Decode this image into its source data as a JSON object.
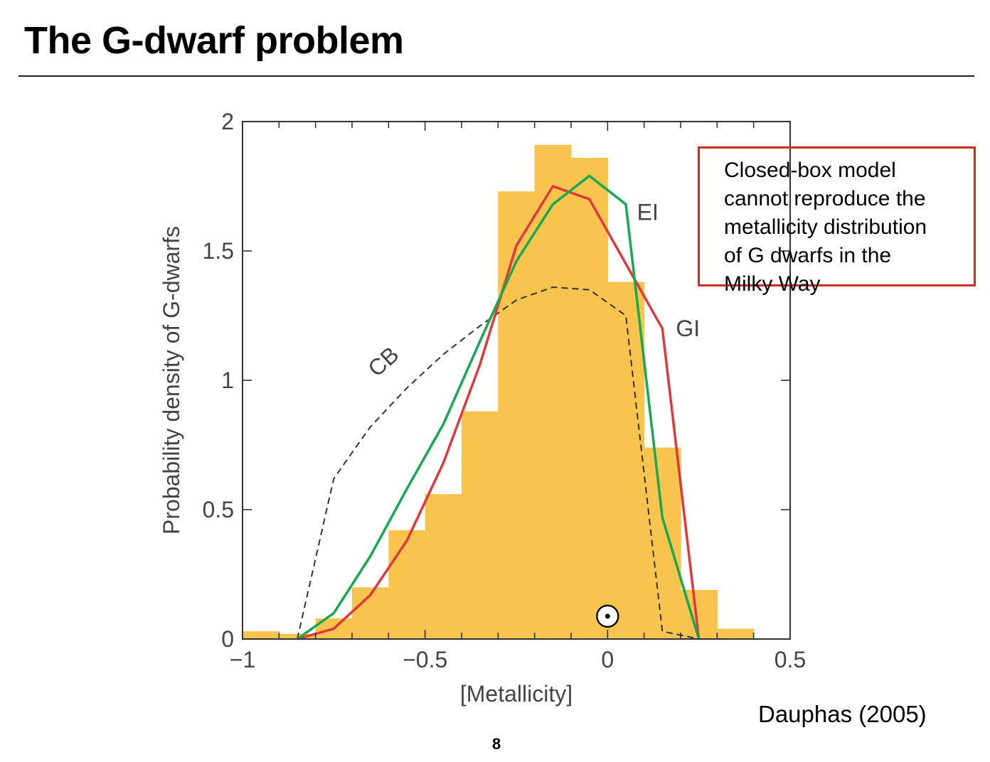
{
  "slide": {
    "title": "The G-dwarf problem",
    "callout_lines": [
      "Closed-box model",
      "cannot reproduce the",
      "metallicity distribution",
      "of G dwarfs in the",
      "Milky Way"
    ],
    "citation": "Dauphas (2005)",
    "page_number": "8"
  },
  "colors": {
    "histogram": "#f8c44e",
    "CB": "#333333",
    "GI": "#e0393b",
    "EI": "#18a851",
    "callout_border": "#cc2e22"
  },
  "chart_data": {
    "type": "bar",
    "xlabel": "[Metallicity]",
    "ylabel": "Probability density of G-dwarfs",
    "xlim": [
      -1,
      0.5
    ],
    "ylim": [
      0,
      2
    ],
    "xticks": [
      {
        "v": -1,
        "label": "−1"
      },
      {
        "v": -0.5,
        "label": "−0.5"
      },
      {
        "v": 0,
        "label": "0"
      },
      {
        "v": 0.5,
        "label": "0.5"
      }
    ],
    "yticks": [
      {
        "v": 0,
        "label": "0"
      },
      {
        "v": 0.5,
        "label": "0.5"
      },
      {
        "v": 1,
        "label": "1"
      },
      {
        "v": 1.5,
        "label": "1.5"
      },
      {
        "v": 2,
        "label": "2"
      }
    ],
    "histogram": {
      "bin_edges": [
        -1.0,
        -0.9,
        -0.8,
        -0.7,
        -0.6,
        -0.5,
        -0.4,
        -0.3,
        -0.2,
        -0.1,
        0.0,
        0.1,
        0.2,
        0.3,
        0.4
      ],
      "values": [
        0.03,
        0.02,
        0.08,
        0.2,
        0.42,
        0.56,
        0.88,
        1.73,
        1.91,
        1.86,
        1.38,
        0.74,
        0.19,
        0.04
      ]
    },
    "series": [
      {
        "name": "CB",
        "style": "dashed",
        "x": [
          -0.85,
          -0.75,
          -0.65,
          -0.55,
          -0.45,
          -0.35,
          -0.25,
          -0.15,
          -0.05,
          0.05,
          0.15,
          0.25
        ],
        "y": [
          0.0,
          0.62,
          0.82,
          0.97,
          1.1,
          1.21,
          1.31,
          1.36,
          1.35,
          1.25,
          0.03,
          0.0
        ]
      },
      {
        "name": "GI",
        "style": "solid",
        "x": [
          -0.85,
          -0.75,
          -0.65,
          -0.55,
          -0.45,
          -0.35,
          -0.25,
          -0.15,
          -0.05,
          0.05,
          0.15,
          0.25
        ],
        "y": [
          0.0,
          0.04,
          0.17,
          0.38,
          0.68,
          1.06,
          1.52,
          1.75,
          1.7,
          1.45,
          1.2,
          0.0
        ]
      },
      {
        "name": "EI",
        "style": "solid",
        "x": [
          -0.85,
          -0.75,
          -0.65,
          -0.55,
          -0.45,
          -0.35,
          -0.25,
          -0.15,
          -0.05,
          0.05,
          0.15,
          0.25
        ],
        "y": [
          0.0,
          0.1,
          0.32,
          0.58,
          0.83,
          1.15,
          1.46,
          1.68,
          1.79,
          1.68,
          0.47,
          0.0
        ]
      }
    ],
    "curve_labels": [
      {
        "text": "CB",
        "x": -0.6,
        "y": 1.05,
        "rotate": -42
      },
      {
        "text": "EI",
        "x": 0.11,
        "y": 1.62
      },
      {
        "text": "GI",
        "x": 0.22,
        "y": 1.17
      }
    ],
    "sun_marker": {
      "symbol": "sun",
      "x": 0.0,
      "y": 0.08
    }
  }
}
